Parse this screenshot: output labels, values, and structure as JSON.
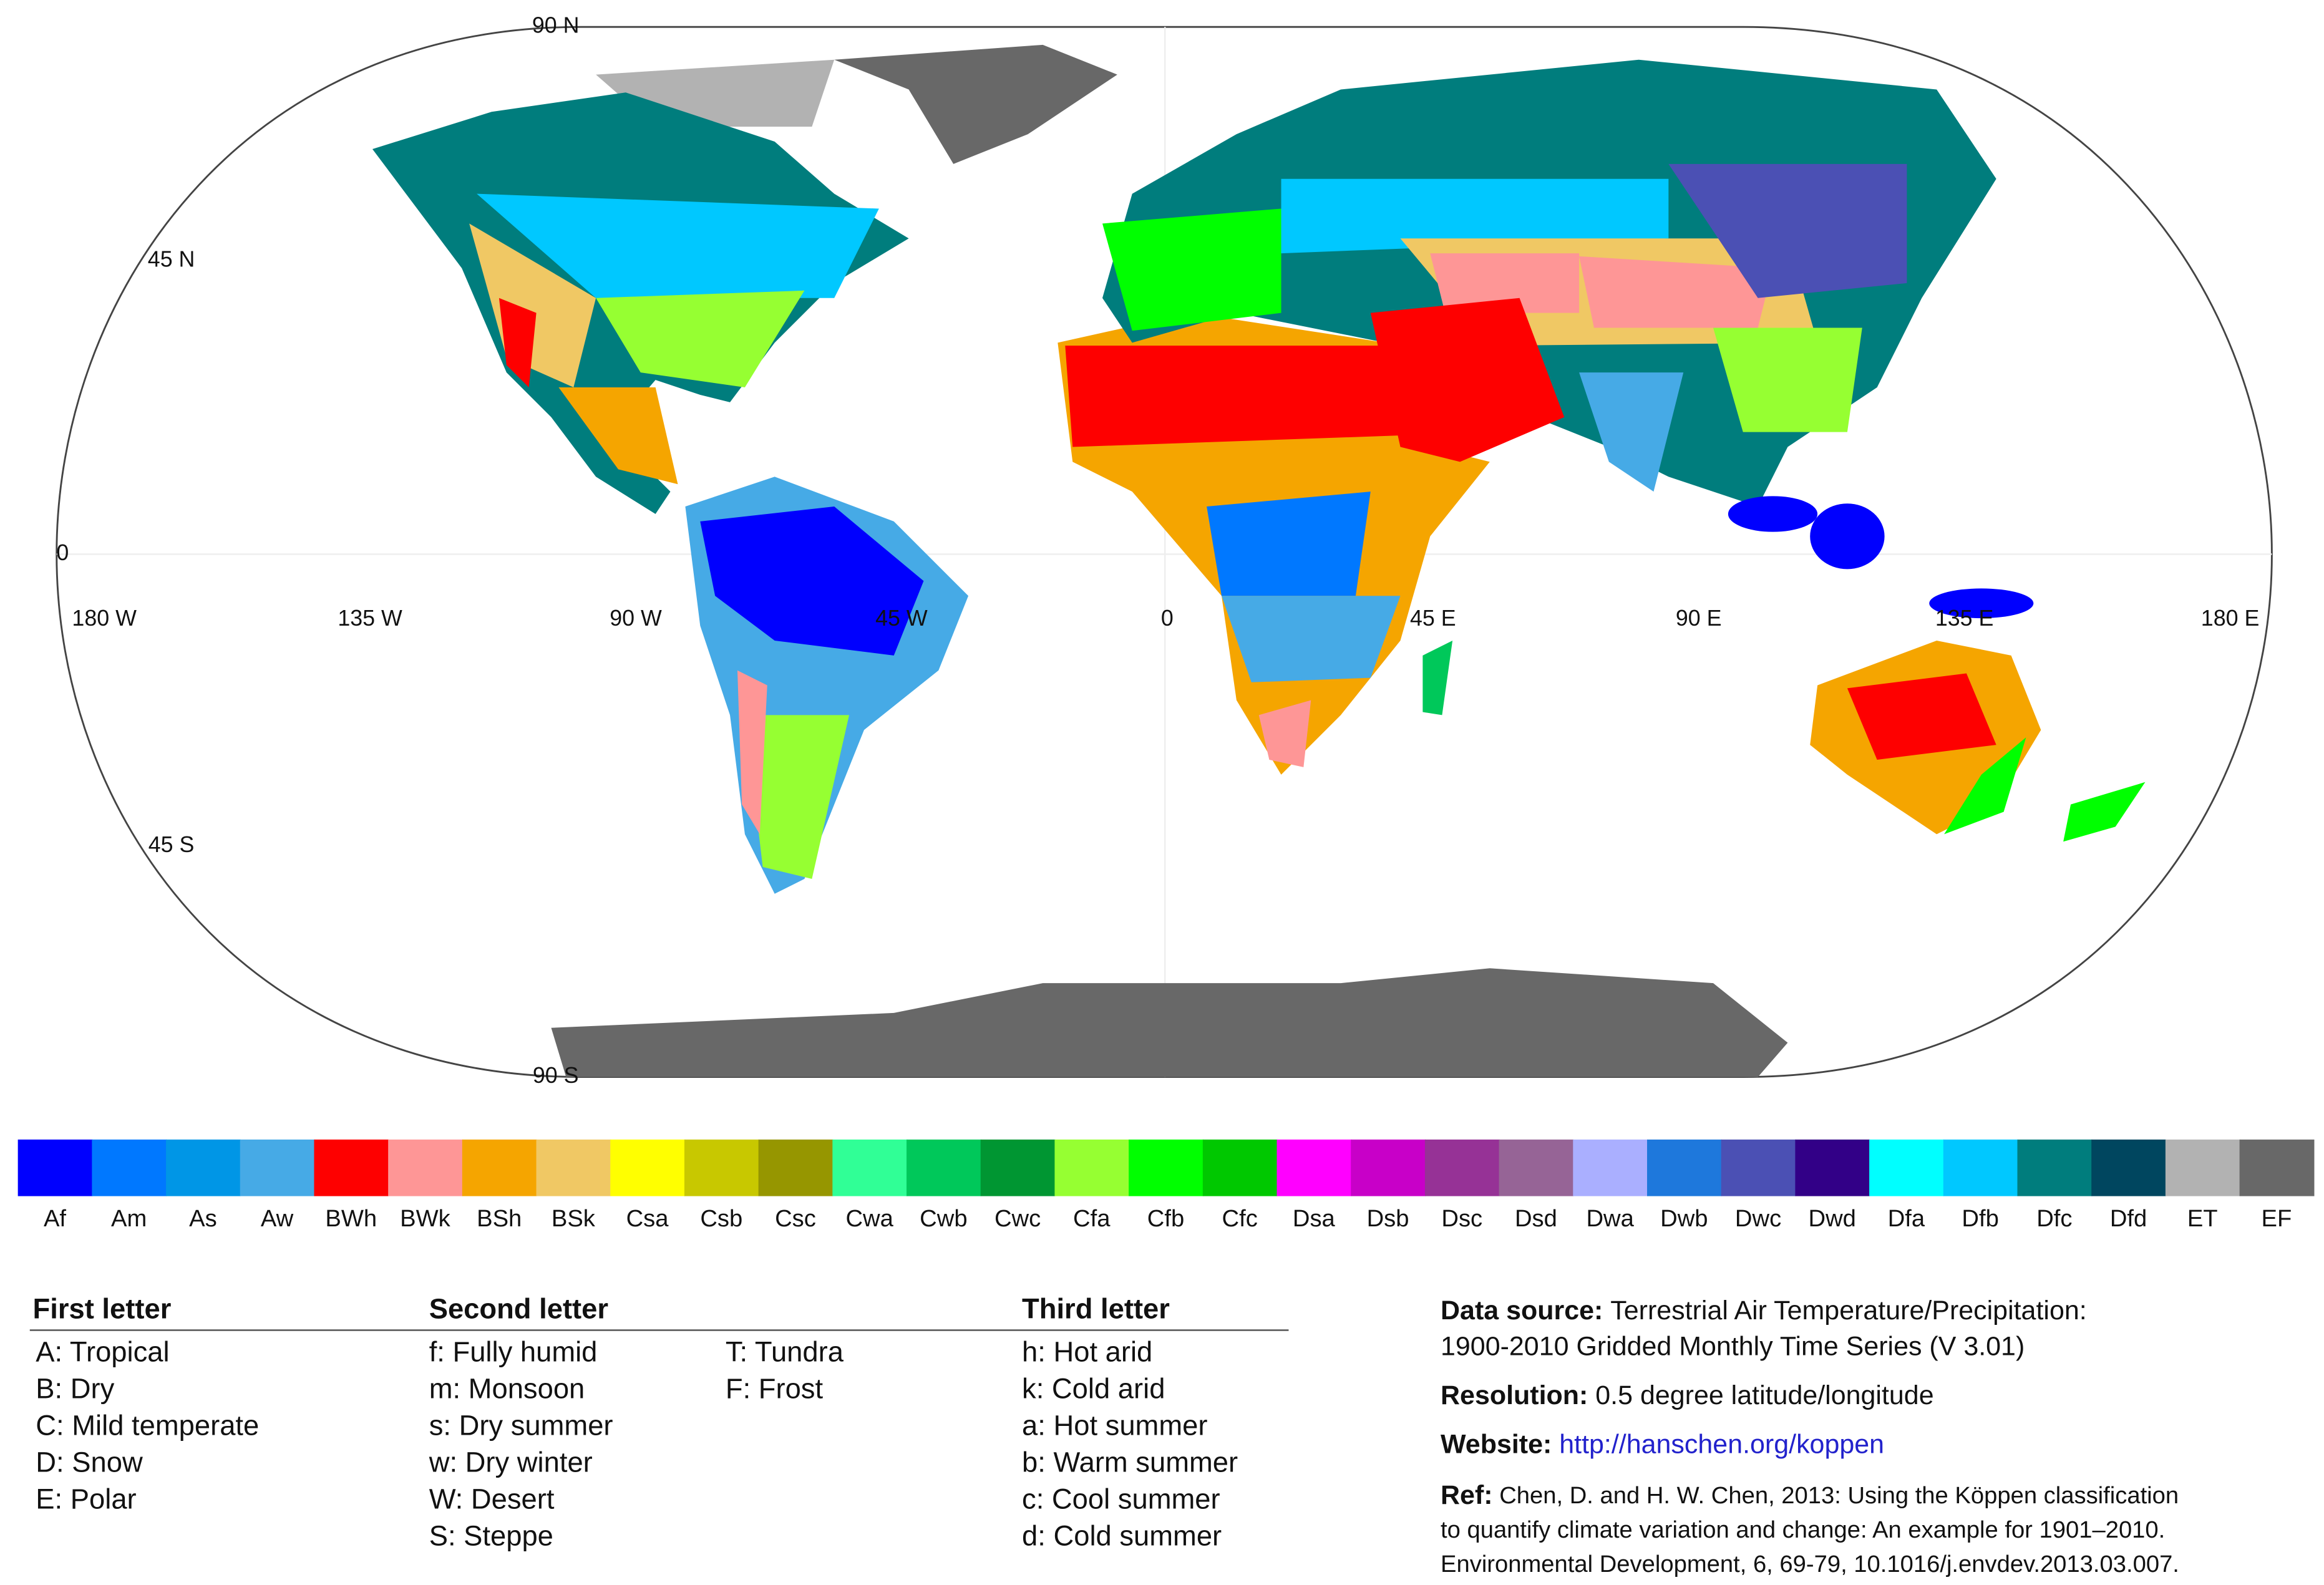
{
  "map": {
    "lat_labels": [
      "90 N",
      "45 N",
      "0",
      "45 S",
      "90 S"
    ],
    "lon_labels": [
      "180 W",
      "135 W",
      "90 W",
      "45 W",
      "0",
      "45 E",
      "90 E",
      "135 E",
      "180 E"
    ]
  },
  "legend": {
    "items": [
      {
        "code": "Af",
        "color": "#0000fe"
      },
      {
        "code": "Am",
        "color": "#0078ff"
      },
      {
        "code": "As",
        "color": "#0096e6"
      },
      {
        "code": "Aw",
        "color": "#46aae6"
      },
      {
        "code": "BWh",
        "color": "#fe0000"
      },
      {
        "code": "BWk",
        "color": "#fe9696"
      },
      {
        "code": "BSh",
        "color": "#f5a500"
      },
      {
        "code": "BSk",
        "color": "#f0c864"
      },
      {
        "code": "Csa",
        "color": "#ffff00"
      },
      {
        "code": "Csb",
        "color": "#c8c800"
      },
      {
        "code": "Csc",
        "color": "#969600"
      },
      {
        "code": "Cwa",
        "color": "#30ff96"
      },
      {
        "code": "Cwb",
        "color": "#00c85a"
      },
      {
        "code": "Cwc",
        "color": "#009632"
      },
      {
        "code": "Cfa",
        "color": "#96ff32"
      },
      {
        "code": "Cfb",
        "color": "#00ff00"
      },
      {
        "code": "Cfc",
        "color": "#00c800"
      },
      {
        "code": "Dsa",
        "color": "#ff00ff"
      },
      {
        "code": "Dsb",
        "color": "#c800c8"
      },
      {
        "code": "Dsc",
        "color": "#963296"
      },
      {
        "code": "Dsd",
        "color": "#966496"
      },
      {
        "code": "Dwa",
        "color": "#aaafff"
      },
      {
        "code": "Dwb",
        "color": "#1e78dc"
      },
      {
        "code": "Dwc",
        "color": "#4b50b4"
      },
      {
        "code": "Dwd",
        "color": "#320087"
      },
      {
        "code": "Dfa",
        "color": "#00ffff"
      },
      {
        "code": "Dfb",
        "color": "#00c8ff"
      },
      {
        "code": "Dfc",
        "color": "#007d7d"
      },
      {
        "code": "Dfd",
        "color": "#00465f"
      },
      {
        "code": "ET",
        "color": "#b2b2b2"
      },
      {
        "code": "EF",
        "color": "#686868"
      }
    ]
  },
  "key": {
    "first_letter": {
      "title": "First letter",
      "items": [
        "A:  Tropical",
        "B:  Dry",
        "C:  Mild temperate",
        "D:  Snow",
        "E:  Polar"
      ]
    },
    "second_letter": {
      "title": "Second letter",
      "column_1": [
        "f:   Fully humid",
        "m: Monsoon",
        "s:   Dry summer",
        "w:  Dry winter",
        "W: Desert",
        "S: Steppe"
      ],
      "column_2": [
        "T:  Tundra",
        "F:  Frost"
      ]
    },
    "third_letter": {
      "title": "Third letter",
      "items": [
        "h:  Hot arid",
        "k:  Cold arid",
        "a:  Hot summer",
        "b:  Warm summer",
        "c:  Cool summer",
        "d:  Cold summer"
      ]
    }
  },
  "info": {
    "data_source": {
      "label": "Data source:",
      "lines": [
        "Terrestrial Air Temperature/Precipitation:",
        "1900-2010 Gridded Monthly Time Series (V 3.01)"
      ]
    },
    "resolution": {
      "label": "Resolution:",
      "text": "0.5 degree latitude/longitude"
    },
    "website": {
      "label": "Website:",
      "url": "http://hanschen.org/koppen"
    },
    "ref": {
      "label": "Ref:",
      "lines": [
        "Chen, D. and H. W. Chen, 2013: Using the Köppen classification",
        "to quantify climate variation and change: An example for 1901–2010.",
        "Environmental Development, 6, 69-79, 10.1016/j.envdev.2013.03.007."
      ]
    }
  }
}
